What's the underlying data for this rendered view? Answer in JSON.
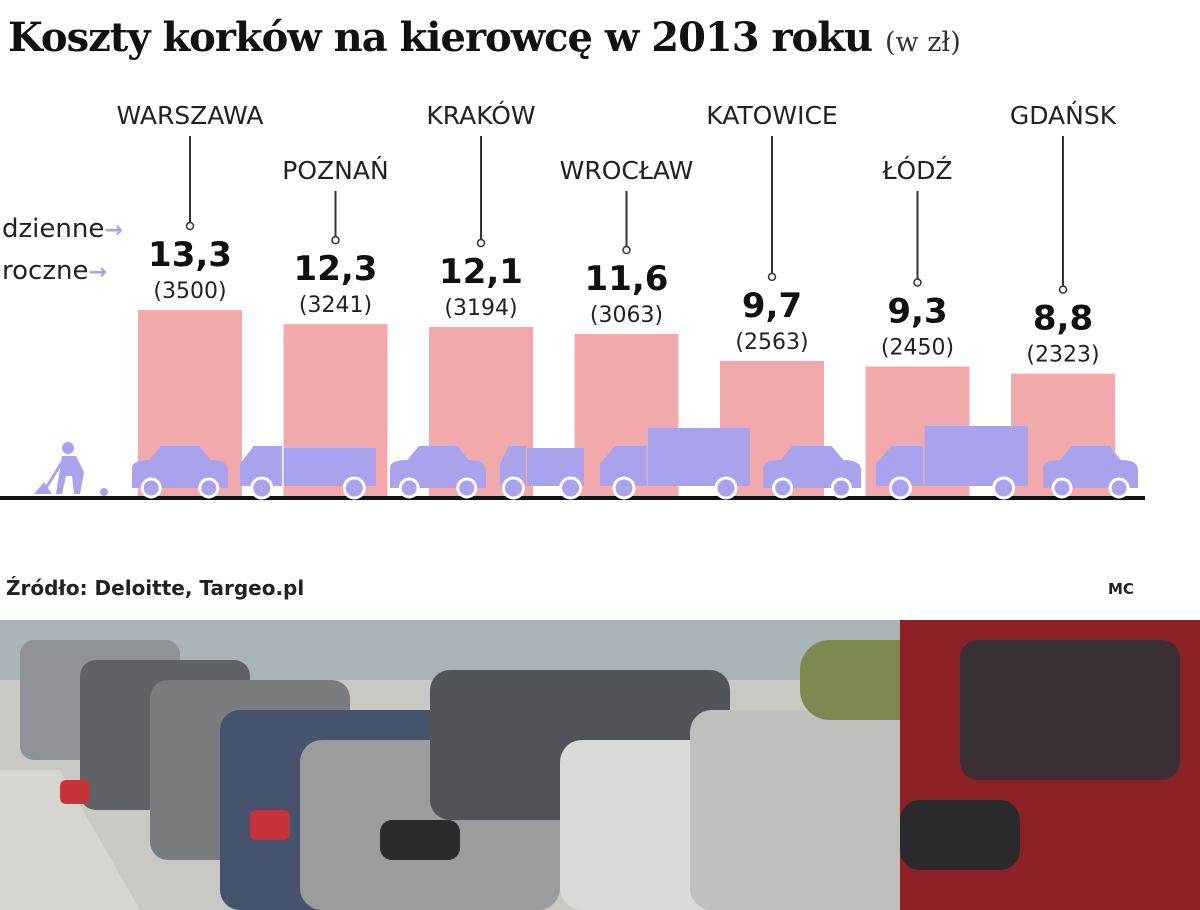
{
  "title": "Koszty korków na kierowcę w 2013 roku",
  "title_unit": "(w zł)",
  "legend": {
    "daily_label": "dzienne",
    "yearly_label": "roczne",
    "arrow": "→"
  },
  "source": "Źródło: Deloitte, Targeo.pl",
  "credit": "MC",
  "colors": {
    "bar": "#f2a9ac",
    "vehicle": "#a9a3ee",
    "baseline": "#111111"
  },
  "chart_data": {
    "type": "bar",
    "title": "Koszty korków na kierowcę w 2013 roku",
    "unit": "(w zł)",
    "categories": [
      "WARSZAWA",
      "POZNAŃ",
      "KRAKÓW",
      "WROCŁAW",
      "KATOWICE",
      "ŁÓDŹ",
      "GDAŃSK"
    ],
    "series": [
      {
        "name": "dzienne",
        "values": [
          13.3,
          12.3,
          12.1,
          11.6,
          9.7,
          9.3,
          8.8
        ]
      },
      {
        "name": "roczne",
        "values": [
          3500,
          3241,
          3194,
          3063,
          2563,
          2450,
          2323
        ]
      }
    ],
    "daily_labels": [
      "13,3",
      "12,3",
      "12,1",
      "11,6",
      "9,7",
      "9,3",
      "8,8"
    ],
    "yearly_labels": [
      "(3500)",
      "(3241)",
      "(3194)",
      "(3063)",
      "(2563)",
      "(2450)",
      "(2323)"
    ],
    "grid": false,
    "legend_position": "left"
  },
  "photo": {
    "description_icon": "traffic-jam-photo"
  }
}
